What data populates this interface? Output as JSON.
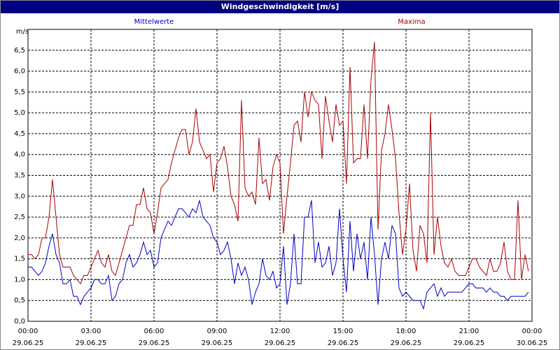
{
  "chart_data": {
    "type": "line",
    "title": "Windgeschwindigkeit [m/s]",
    "y_unit": "m/s",
    "x": [
      0,
      10,
      20,
      30,
      40,
      50,
      60,
      70,
      80,
      90,
      100,
      110,
      120,
      130,
      140,
      150,
      160,
      170,
      180,
      190,
      200,
      210,
      220,
      230,
      240,
      250,
      260,
      270,
      280,
      290,
      300,
      310,
      320,
      330,
      340,
      350,
      360,
      370,
      380,
      390,
      400,
      410,
      420,
      430,
      440,
      450,
      460,
      470,
      480,
      490,
      500,
      510,
      520,
      530,
      540,
      550,
      560,
      570,
      580,
      590,
      600,
      610,
      620,
      630,
      640,
      650,
      660,
      670,
      680,
      690,
      700,
      710,
      720,
      730,
      740,
      750,
      760,
      770,
      780,
      790,
      800,
      810,
      820,
      830,
      840,
      850,
      860,
      870,
      880,
      890,
      900,
      910,
      920,
      930,
      940,
      950,
      960,
      970,
      980,
      990,
      1000,
      1010,
      1020,
      1030,
      1040,
      1050,
      1060,
      1070,
      1080,
      1090,
      1100,
      1110,
      1120,
      1130,
      1140,
      1150,
      1160,
      1170,
      1180,
      1190,
      1200,
      1210,
      1220,
      1230,
      1240,
      1250,
      1260,
      1270,
      1280,
      1290,
      1300,
      1310,
      1320,
      1330,
      1340,
      1350,
      1360,
      1370,
      1380,
      1390,
      1400,
      1410,
      1420,
      1430
    ],
    "series": [
      {
        "name": "Mittelwerte",
        "color": "#0000cc",
        "values": [
          1.3,
          1.3,
          1.2,
          1.1,
          1.2,
          1.4,
          1.8,
          2.1,
          1.6,
          1.4,
          0.9,
          0.9,
          1.0,
          0.6,
          0.6,
          0.4,
          0.6,
          0.7,
          0.8,
          1.0,
          1.0,
          0.9,
          0.9,
          1.1,
          0.5,
          0.6,
          0.9,
          1.0,
          1.4,
          1.6,
          1.3,
          1.4,
          1.6,
          1.9,
          1.6,
          1.7,
          1.3,
          1.4,
          2.0,
          2.2,
          2.4,
          2.3,
          2.5,
          2.7,
          2.7,
          2.6,
          2.5,
          2.7,
          2.6,
          2.9,
          2.5,
          2.4,
          2.3,
          2.0,
          1.9,
          1.6,
          1.7,
          1.9,
          1.5,
          0.9,
          1.4,
          1.1,
          1.3,
          1.0,
          0.4,
          0.7,
          0.9,
          1.5,
          1.1,
          1.0,
          1.2,
          0.8,
          0.9,
          1.8,
          0.4,
          0.9,
          2.1,
          0.9,
          0.9,
          2.5,
          2.5,
          2.9,
          1.4,
          1.9,
          1.3,
          1.4,
          1.8,
          1.1,
          1.4,
          2.7,
          1.5,
          0.7,
          2.4,
          1.2,
          2.1,
          1.5,
          1.9,
          1.0,
          2.5,
          1.6,
          0.4,
          1.5,
          1.9,
          1.5,
          2.3,
          2.1,
          0.8,
          0.6,
          0.7,
          0.6,
          0.5,
          0.5,
          0.5,
          0.3,
          0.7,
          0.8,
          0.9,
          0.6,
          0.8,
          0.6,
          0.7,
          0.7,
          0.7,
          0.7,
          0.7,
          0.8,
          0.9,
          0.9,
          0.8,
          0.8,
          0.8,
          0.7,
          0.8,
          0.7,
          0.7,
          0.6,
          0.6,
          0.5,
          0.6,
          0.6,
          0.6,
          0.6,
          0.6,
          0.7
        ]
      },
      {
        "name": "Maxima",
        "color": "#aa0000",
        "values": [
          1.6,
          1.6,
          1.5,
          1.6,
          2.0,
          2.0,
          2.5,
          3.4,
          2.5,
          1.6,
          1.3,
          1.3,
          1.3,
          1.1,
          1.0,
          0.9,
          1.1,
          1.1,
          1.3,
          1.5,
          1.7,
          1.4,
          1.3,
          1.6,
          1.2,
          1.1,
          1.4,
          1.7,
          2.0,
          2.3,
          2.3,
          2.8,
          2.8,
          3.2,
          2.7,
          2.6,
          2.1,
          2.6,
          3.2,
          3.3,
          3.4,
          3.8,
          4.1,
          4.4,
          4.6,
          4.6,
          4.0,
          4.3,
          5.1,
          4.3,
          4.1,
          3.9,
          4.0,
          3.1,
          3.8,
          3.9,
          4.2,
          3.7,
          3.0,
          2.8,
          2.4,
          5.3,
          3.2,
          3.0,
          3.1,
          2.8,
          4.4,
          3.3,
          3.4,
          2.9,
          3.7,
          4.0,
          3.8,
          2.1,
          3.0,
          3.8,
          4.7,
          4.8,
          4.3,
          5.5,
          4.9,
          5.5,
          5.3,
          5.2,
          3.9,
          5.4,
          4.8,
          4.3,
          5.2,
          4.7,
          4.8,
          3.3,
          6.1,
          3.8,
          3.9,
          3.9,
          5.2,
          3.9,
          5.8,
          6.7,
          2.2,
          4.1,
          4.5,
          5.2,
          4.6,
          3.9,
          2.6,
          1.6,
          2.2,
          3.3,
          1.7,
          1.2,
          2.3,
          2.1,
          1.4,
          5.0,
          1.6,
          2.5,
          1.8,
          1.4,
          1.3,
          1.5,
          1.2,
          1.1,
          1.1,
          1.1,
          1.3,
          1.5,
          1.5,
          1.3,
          1.2,
          1.1,
          1.5,
          1.2,
          1.2,
          1.4,
          1.9,
          1.2,
          1.0,
          1.0,
          2.9,
          1.0,
          1.6,
          1.2
        ]
      }
    ],
    "xlim": [
      0,
      1440
    ],
    "xticks": [
      {
        "value": 0,
        "label": "00:00",
        "date": "29.06.25"
      },
      {
        "value": 180,
        "label": "03:00",
        "date": "29.06.25"
      },
      {
        "value": 360,
        "label": "06:00",
        "date": "29.06.25"
      },
      {
        "value": 540,
        "label": "09:00",
        "date": "29.06.25"
      },
      {
        "value": 720,
        "label": "12:00",
        "date": "29.06.25"
      },
      {
        "value": 900,
        "label": "15:00",
        "date": "29.06.25"
      },
      {
        "value": 1080,
        "label": "18:00",
        "date": "29.06.25"
      },
      {
        "value": 1260,
        "label": "21:00",
        "date": "29.06.25"
      },
      {
        "value": 1440,
        "label": "00:00",
        "date": "30.06.25"
      }
    ],
    "ylim": [
      0,
      7
    ],
    "yticks": [
      {
        "value": 0,
        "label": "0,0"
      },
      {
        "value": 0.5,
        "label": "0,5"
      },
      {
        "value": 1,
        "label": "1,0"
      },
      {
        "value": 1.5,
        "label": "1,5"
      },
      {
        "value": 2,
        "label": "2,0"
      },
      {
        "value": 2.5,
        "label": "2,5"
      },
      {
        "value": 3,
        "label": "3,0"
      },
      {
        "value": 3.5,
        "label": "3,5"
      },
      {
        "value": 4,
        "label": "4,0"
      },
      {
        "value": 4.5,
        "label": "4,5"
      },
      {
        "value": 5,
        "label": "5,0"
      },
      {
        "value": 5.5,
        "label": "5,5"
      },
      {
        "value": 6,
        "label": "6,0"
      },
      {
        "value": 6.5,
        "label": "6,5"
      }
    ],
    "grid": true
  }
}
